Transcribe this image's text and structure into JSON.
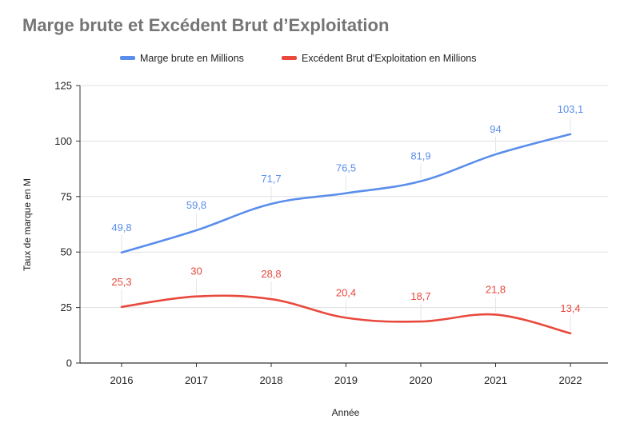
{
  "chart_data": {
    "type": "line",
    "title": "Marge brute et Excédent Brut d’Exploitation",
    "xlabel": "Année",
    "ylabel": "Taux de marque en M",
    "categories": [
      "2016",
      "2017",
      "2018",
      "2019",
      "2020",
      "2021",
      "2022"
    ],
    "ylim": [
      0,
      125
    ],
    "yticks": [
      0,
      25,
      50,
      75,
      100,
      125
    ],
    "grid": true,
    "legend_position": "top",
    "series": [
      {
        "name": "Marge brute en Millions",
        "color": "#5a8eec",
        "values": [
          49.8,
          59.8,
          71.7,
          76.5,
          81.9,
          94,
          103.1
        ],
        "labels": [
          "49,8",
          "59,8",
          "71,7",
          "76,5",
          "81,9",
          "94",
          "103,1"
        ]
      },
      {
        "name": "Excédent Brut d'Exploitation en Millions",
        "color": "#e8493c",
        "values": [
          25.3,
          30,
          28.8,
          20.4,
          18.7,
          21.8,
          13.4
        ],
        "labels": [
          "25,3",
          "30",
          "28,8",
          "20,4",
          "18,7",
          "21,8",
          "13,4"
        ]
      }
    ]
  }
}
